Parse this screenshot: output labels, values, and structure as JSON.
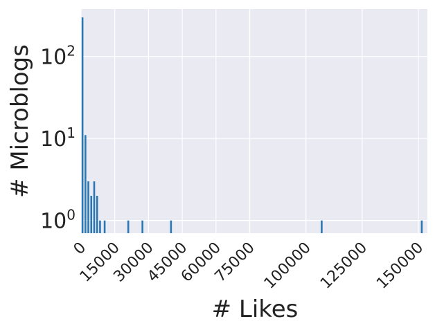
{
  "chart_data": {
    "type": "bar",
    "title": "",
    "xlabel": "# Likes",
    "ylabel": "# Microblogs",
    "y_scale": "log",
    "grid": true,
    "xlim": [
      0,
      154000
    ],
    "ylim": [
      0.7,
      380
    ],
    "x_ticks": [
      {
        "value": 0,
        "label": "0"
      },
      {
        "value": 15000,
        "label": "15000"
      },
      {
        "value": 30000,
        "label": "30000"
      },
      {
        "value": 45000,
        "label": "45000"
      },
      {
        "value": 60000,
        "label": "60000"
      },
      {
        "value": 75000,
        "label": "75000"
      },
      {
        "value": 100000,
        "label": "100000"
      },
      {
        "value": 125000,
        "label": "125000"
      },
      {
        "value": 150000,
        "label": "150000"
      }
    ],
    "y_ticks": [
      {
        "value": 1,
        "base": "10",
        "exp": "0"
      },
      {
        "value": 10,
        "base": "10",
        "exp": "1"
      },
      {
        "value": 100,
        "base": "10",
        "exp": "2"
      }
    ],
    "bars": [
      {
        "x": 650,
        "y": 300
      },
      {
        "x": 1950,
        "y": 11
      },
      {
        "x": 3250,
        "y": 3
      },
      {
        "x": 4550,
        "y": 2
      },
      {
        "x": 5850,
        "y": 3
      },
      {
        "x": 7150,
        "y": 2
      },
      {
        "x": 8450,
        "y": 1
      },
      {
        "x": 10500,
        "y": 1
      },
      {
        "x": 21000,
        "y": 1
      },
      {
        "x": 27300,
        "y": 1
      },
      {
        "x": 40000,
        "y": 1
      },
      {
        "x": 107000,
        "y": 1
      },
      {
        "x": 151500,
        "y": 1
      }
    ],
    "bar_color": "#2a77b4",
    "plot_background": "#eaeaf2",
    "grid_color": "#ffffff"
  }
}
